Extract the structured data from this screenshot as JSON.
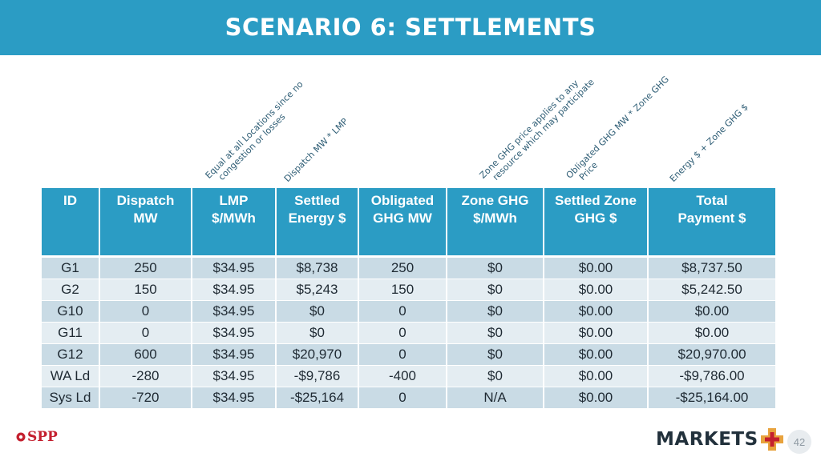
{
  "slide": {
    "title": "SCENARIO 6:  SETTLEMENTS",
    "page_number": "42"
  },
  "annotations": [
    {
      "lines": [
        "Equal at all Locations since no",
        "congestion or losses"
      ]
    },
    {
      "lines": [
        "Dispatch MW * LMP"
      ]
    },
    {
      "lines": [
        "Zone GHG price applies to any",
        "resource which may participate"
      ]
    },
    {
      "lines": [
        "Obligated GHG MW * Zone GHG",
        "Price"
      ]
    },
    {
      "lines": [
        "Energy $ + Zone GHG $"
      ]
    }
  ],
  "table": {
    "columns": [
      [
        "ID"
      ],
      [
        "Dispatch",
        "MW"
      ],
      [
        "LMP",
        "$/MWh"
      ],
      [
        "Settled",
        "Energy $"
      ],
      [
        "Obligated",
        "GHG MW"
      ],
      [
        "Zone GHG",
        "$/MWh"
      ],
      [
        "Settled Zone",
        "GHG $"
      ],
      [
        "Total",
        "Payment $"
      ]
    ],
    "rows": [
      [
        "G1",
        "250",
        "$34.95",
        "$8,738",
        "250",
        "$0",
        "$0.00",
        "$8,737.50"
      ],
      [
        "G2",
        "150",
        "$34.95",
        "$5,243",
        "150",
        "$0",
        "$0.00",
        "$5,242.50"
      ],
      [
        "G10",
        "0",
        "$34.95",
        "$0",
        "0",
        "$0",
        "$0.00",
        "$0.00"
      ],
      [
        "G11",
        "0",
        "$34.95",
        "$0",
        "0",
        "$0",
        "$0.00",
        "$0.00"
      ],
      [
        "G12",
        "600",
        "$34.95",
        "$20,970",
        "0",
        "$0",
        "$0.00",
        "$20,970.00"
      ],
      [
        "WA Ld",
        "-280",
        "$34.95",
        "-$9,786",
        "-400",
        "$0",
        "$0.00",
        "-$9,786.00"
      ],
      [
        "Sys Ld",
        "-720",
        "$34.95",
        "-$25,164",
        "0",
        "N/A",
        "$0.00",
        "-$25,164.00"
      ]
    ]
  },
  "footer": {
    "left_logo": "SPP",
    "right_logo": "MARKETS"
  },
  "colors": {
    "accent": "#2b9cc4",
    "row_odd": "#c9dbe5",
    "row_even": "#e4edf2",
    "logo_red": "#c4202f",
    "logo_plus": "#e8a33d"
  }
}
